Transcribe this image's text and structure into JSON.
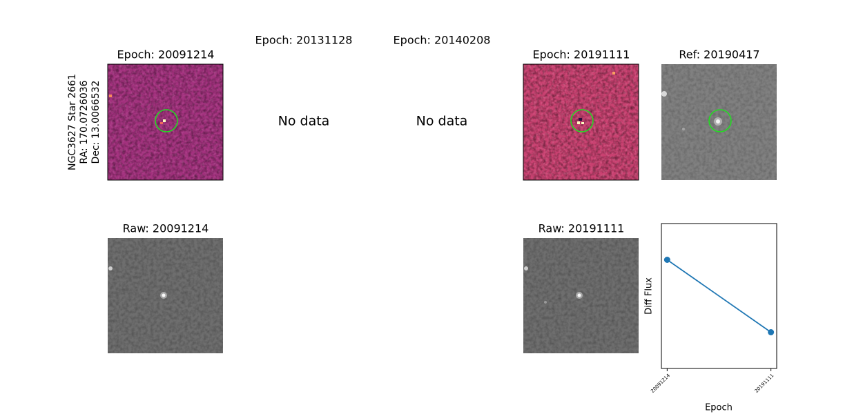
{
  "target": {
    "lines": [
      "NGC3627 Star 2661",
      "RA: 170.0726036",
      "Dec: 13.0066532"
    ]
  },
  "panels": [
    {
      "title": "Epoch: 20091214"
    },
    {
      "title": "Epoch: 20131128",
      "message": "No data"
    },
    {
      "title": "Epoch: 20140208",
      "message": "No data"
    },
    {
      "title": "Epoch: 20191111"
    }
  ],
  "reference": {
    "title": "Ref: 20190417"
  },
  "raw_panels": [
    {
      "title": "Raw: 20091214"
    },
    {
      "title": "Raw: 20191111"
    }
  ],
  "chart_data": {
    "type": "line",
    "x_label": "Epoch",
    "y_label": "Diff Flux",
    "categories": [
      "20091214",
      "20191111"
    ],
    "series": [
      {
        "color": "#1f77b4",
        "values": [
          0.75,
          0.25
        ]
      }
    ],
    "ylim": [
      0,
      1
    ]
  }
}
